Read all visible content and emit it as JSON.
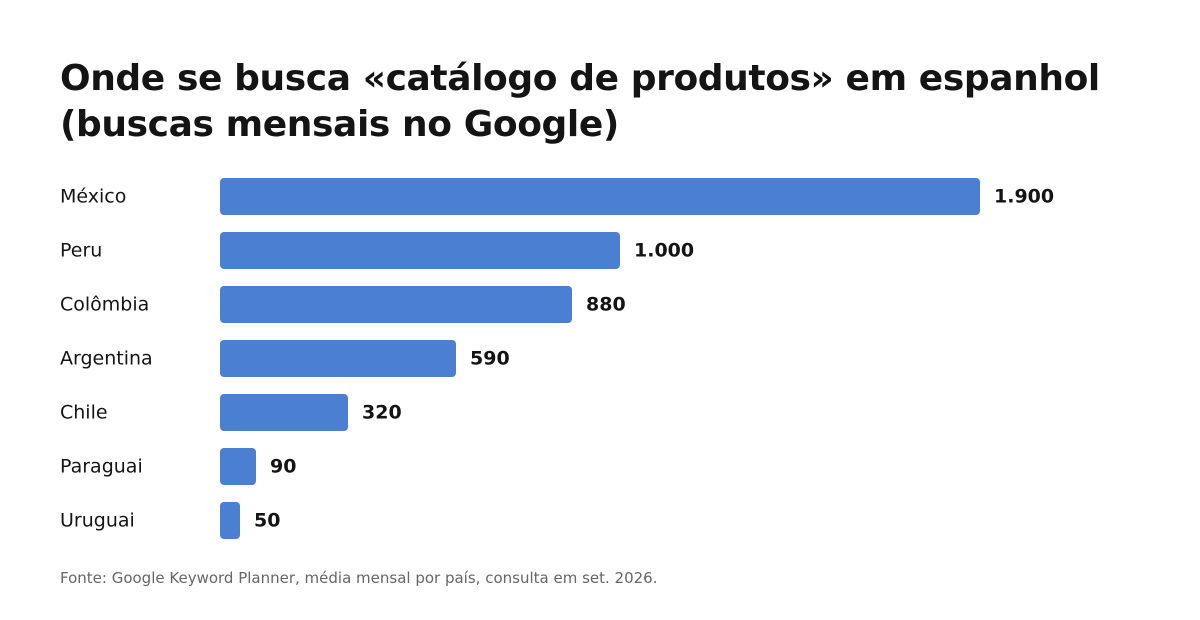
{
  "title_lines": [
    "Onde se busca «catálogo de produtos» em espanhol",
    "(buscas mensais no Google)"
  ],
  "source": "Fonte: Google Keyword Planner, média mensal por país, consulta em set. 2026.",
  "colors": {
    "bar": "#4A7FD1",
    "text": "#141414",
    "source": "#666666"
  },
  "chart_data": {
    "type": "bar",
    "orientation": "horizontal",
    "title": "Onde se busca «catálogo de produtos» em espanhol (buscas mensais no Google)",
    "categories": [
      "México",
      "Peru",
      "Colômbia",
      "Argentina",
      "Chile",
      "Paraguai",
      "Uruguai"
    ],
    "values": [
      1900,
      1000,
      880,
      590,
      320,
      90,
      50
    ],
    "value_labels": [
      "1.900",
      "1.000",
      "880",
      "590",
      "320",
      "90",
      "50"
    ],
    "xlim": [
      0,
      1900
    ],
    "grid": false,
    "legend": "none"
  }
}
